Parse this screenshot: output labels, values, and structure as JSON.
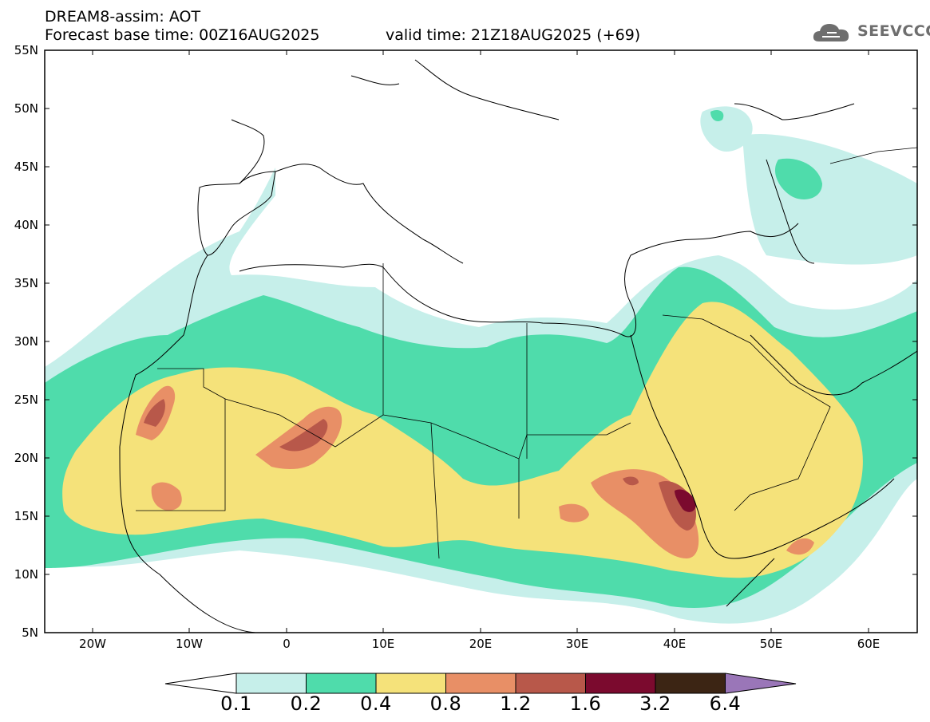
{
  "header": {
    "line1": "DREAM8-assim: AOT",
    "line2": "Forecast base time: 00Z16AUG2025",
    "line3": "valid time: 21Z18AUG2025 (+69)",
    "logo_text": "SEEVCCC"
  },
  "map": {
    "lat_labels": [
      "55N",
      "50N",
      "45N",
      "40N",
      "35N",
      "30N",
      "25N",
      "20N",
      "15N",
      "10N",
      "5N"
    ],
    "lon_labels": [
      "20W",
      "10W",
      "0",
      "10E",
      "20E",
      "30E",
      "40E",
      "50E",
      "60E"
    ],
    "region": {
      "lon_range": [
        -25,
        65
      ],
      "lat_range": [
        5,
        55
      ]
    }
  },
  "colorbar": {
    "labels": [
      "0.1",
      "0.2",
      "0.4",
      "0.8",
      "1.2",
      "1.6",
      "3.2",
      "6.4"
    ],
    "colors": {
      "under": "#ffffff",
      "c1": "#c6efea",
      "c2": "#4fdcab",
      "c3": "#f5e27a",
      "c4": "#e88f66",
      "c5": "#b8584a",
      "c6": "#7b0a2e",
      "c7": "#3c2514",
      "over": "#9a76b8"
    }
  }
}
